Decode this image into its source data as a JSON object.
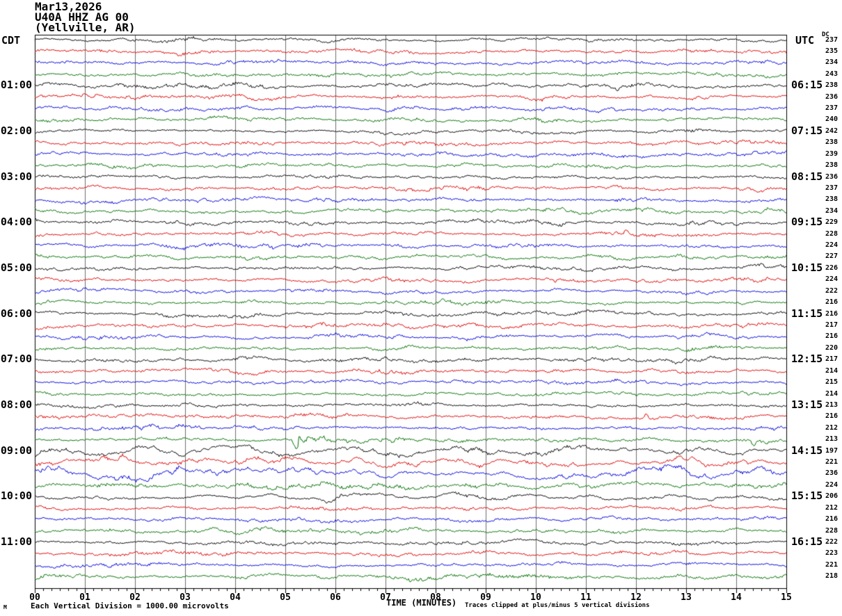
{
  "title": {
    "date": "Mar13,2026",
    "station": "U40A HHZ AG 00",
    "location": "(Yellville, AR)"
  },
  "axes": {
    "left_tz": "CDT",
    "right_tz": "UTC",
    "dc_header": "DC",
    "x_label": "TIME (MINUTES)",
    "x_ticks": [
      "00",
      "01",
      "02",
      "03",
      "04",
      "05",
      "06",
      "07",
      "08",
      "09",
      "10",
      "11",
      "12",
      "13",
      "14",
      "15"
    ]
  },
  "left_time_labels": [
    "01:00",
    "02:00",
    "03:00",
    "04:00",
    "05:00",
    "06:00",
    "07:00",
    "08:00",
    "09:00",
    "10:00",
    "11:00"
  ],
  "right_time_labels": [
    "06:15",
    "07:15",
    "08:15",
    "09:15",
    "10:15",
    "11:15",
    "12:15",
    "13:15",
    "14:15",
    "15:15",
    "16:15"
  ],
  "footer": {
    "scale_note": "Each Vertical Division = 1000.00 microvolts",
    "clip_note": "Traces clipped at plus/minus 5 vertical divisions",
    "watermark": "M"
  },
  "colors": {
    "trace": {
      "black": "#000000",
      "red": "#e00000",
      "blue": "#0000dd",
      "green": "#007000"
    },
    "grid": "#6e6e6e",
    "border": "#000000",
    "background": "#ffffff"
  },
  "chart_data": {
    "type": "line",
    "subtype": "helicorder-seismogram",
    "title": "U40A HHZ AG 00 (Yellville, AR) Mar13,2026",
    "xlabel": "TIME (MINUTES)",
    "x_range": [
      0,
      15
    ],
    "minutes_per_line": 15,
    "lines_per_hour": 4,
    "line_color_cycle": [
      "black",
      "red",
      "blue",
      "green"
    ],
    "vertical_division": "1000.00 microvolts",
    "clipping": "plus/minus 5 vertical divisions",
    "rows": [
      {
        "cdt": "00:00",
        "color": "black",
        "dc": 237
      },
      {
        "cdt": "00:15",
        "color": "red",
        "dc": 235
      },
      {
        "cdt": "00:30",
        "color": "blue",
        "dc": 234
      },
      {
        "cdt": "00:45",
        "color": "green",
        "dc": 243
      },
      {
        "cdt": "01:00",
        "color": "black",
        "dc": 238
      },
      {
        "cdt": "01:15",
        "color": "red",
        "dc": 236
      },
      {
        "cdt": "01:30",
        "color": "blue",
        "dc": 237
      },
      {
        "cdt": "01:45",
        "color": "green",
        "dc": 240
      },
      {
        "cdt": "02:00",
        "color": "black",
        "dc": 242
      },
      {
        "cdt": "02:15",
        "color": "red",
        "dc": 238
      },
      {
        "cdt": "02:30",
        "color": "blue",
        "dc": 239
      },
      {
        "cdt": "02:45",
        "color": "green",
        "dc": 238
      },
      {
        "cdt": "03:00",
        "color": "black",
        "dc": 236
      },
      {
        "cdt": "03:15",
        "color": "red",
        "dc": 237
      },
      {
        "cdt": "03:30",
        "color": "blue",
        "dc": 238
      },
      {
        "cdt": "03:45",
        "color": "green",
        "dc": 234
      },
      {
        "cdt": "04:00",
        "color": "black",
        "dc": 229
      },
      {
        "cdt": "04:15",
        "color": "red",
        "dc": 228
      },
      {
        "cdt": "04:30",
        "color": "blue",
        "dc": 224
      },
      {
        "cdt": "04:45",
        "color": "green",
        "dc": 227
      },
      {
        "cdt": "05:00",
        "color": "black",
        "dc": 226
      },
      {
        "cdt": "05:15",
        "color": "red",
        "dc": 224
      },
      {
        "cdt": "05:30",
        "color": "blue",
        "dc": 222
      },
      {
        "cdt": "05:45",
        "color": "green",
        "dc": 216
      },
      {
        "cdt": "06:00",
        "color": "black",
        "dc": 216
      },
      {
        "cdt": "06:15",
        "color": "red",
        "dc": 217
      },
      {
        "cdt": "06:30",
        "color": "blue",
        "dc": 216
      },
      {
        "cdt": "06:45",
        "color": "green",
        "dc": 220
      },
      {
        "cdt": "07:00",
        "color": "black",
        "dc": 217
      },
      {
        "cdt": "07:15",
        "color": "red",
        "dc": 214
      },
      {
        "cdt": "07:30",
        "color": "blue",
        "dc": 215
      },
      {
        "cdt": "07:45",
        "color": "green",
        "dc": 214
      },
      {
        "cdt": "08:00",
        "color": "black",
        "dc": 213
      },
      {
        "cdt": "08:15",
        "color": "red",
        "dc": 216
      },
      {
        "cdt": "08:30",
        "color": "blue",
        "dc": 212
      },
      {
        "cdt": "08:45",
        "color": "green",
        "dc": 213
      },
      {
        "cdt": "09:00",
        "color": "black",
        "dc": 197,
        "amp": 1.9,
        "lf": 1.5
      },
      {
        "cdt": "09:15",
        "color": "red",
        "dc": 221,
        "amp": 1.9,
        "lf": 1.5
      },
      {
        "cdt": "09:30",
        "color": "blue",
        "dc": 236,
        "amp": 2.2,
        "lf": 1.5
      },
      {
        "cdt": "09:45",
        "color": "green",
        "dc": 224,
        "amp": 1.35
      },
      {
        "cdt": "10:00",
        "color": "black",
        "dc": 206,
        "amp": 1.3,
        "lf": 1.4
      },
      {
        "cdt": "10:15",
        "color": "red",
        "dc": 212,
        "amp": 1.15
      },
      {
        "cdt": "10:30",
        "color": "blue",
        "dc": 216
      },
      {
        "cdt": "10:45",
        "color": "green",
        "dc": 228
      },
      {
        "cdt": "11:00",
        "color": "black",
        "dc": 222
      },
      {
        "cdt": "11:15",
        "color": "red",
        "dc": 223
      },
      {
        "cdt": "11:30",
        "color": "blue",
        "dc": 221
      },
      {
        "cdt": "11:45",
        "color": "green",
        "dc": 218,
        "amp": 1.15
      }
    ],
    "events": [
      {
        "row": 35,
        "kind": "spike",
        "t": 5.2,
        "px": 12,
        "desc": "sharp onset spike on 08:45 CDT green trace"
      },
      {
        "row": 35,
        "kind": "burst",
        "t": 5.2,
        "gain": 3.0,
        "decay": 1.3,
        "desc": "small event coda on 08:45 CDT green trace"
      },
      {
        "row": 35,
        "kind": "spike",
        "t": 14.35,
        "px": 10,
        "desc": "late spike near end of 08:45 CDT green trace"
      },
      {
        "row": 33,
        "kind": "spike",
        "t": 12.2,
        "px": -8,
        "desc": "small red spike on 08:15 CDT trace"
      },
      {
        "row": 17,
        "kind": "spike",
        "t": 11.8,
        "px": -7,
        "desc": "small red spike on 04:15 CDT trace"
      }
    ]
  }
}
